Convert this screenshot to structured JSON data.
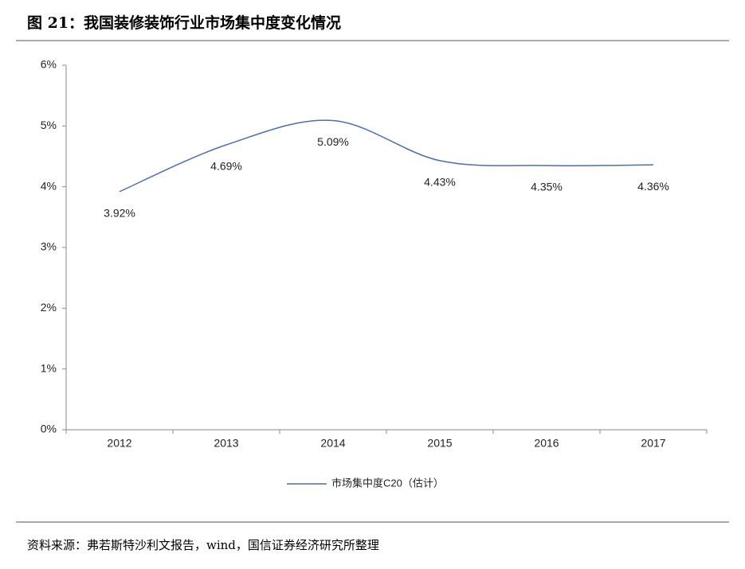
{
  "chart_data": {
    "type": "line",
    "title": "图 21：我国装修装饰行业市场集中度变化情况",
    "source": "资料来源：弗若斯特沙利文报告，wind，国信证券经济研究所整理",
    "categories": [
      "2012",
      "2013",
      "2014",
      "2015",
      "2016",
      "2017"
    ],
    "series": [
      {
        "name": "市场集中度C20（估计）",
        "color": "#4f6fa3",
        "values": [
          3.92,
          4.69,
          5.09,
          4.43,
          4.35,
          4.36
        ],
        "value_labels": [
          "3.92%",
          "4.69%",
          "5.09%",
          "4.43%",
          "4.35%",
          "4.36%"
        ]
      }
    ],
    "ylim": [
      0,
      6
    ],
    "yticks": [
      {
        "value": 0,
        "label": "0%"
      },
      {
        "value": 1,
        "label": "1%"
      },
      {
        "value": 2,
        "label": "2%"
      },
      {
        "value": 3,
        "label": "3%"
      },
      {
        "value": 4,
        "label": "4%"
      },
      {
        "value": 5,
        "label": "5%"
      },
      {
        "value": 6,
        "label": "6%"
      }
    ],
    "legend": "bottom"
  }
}
